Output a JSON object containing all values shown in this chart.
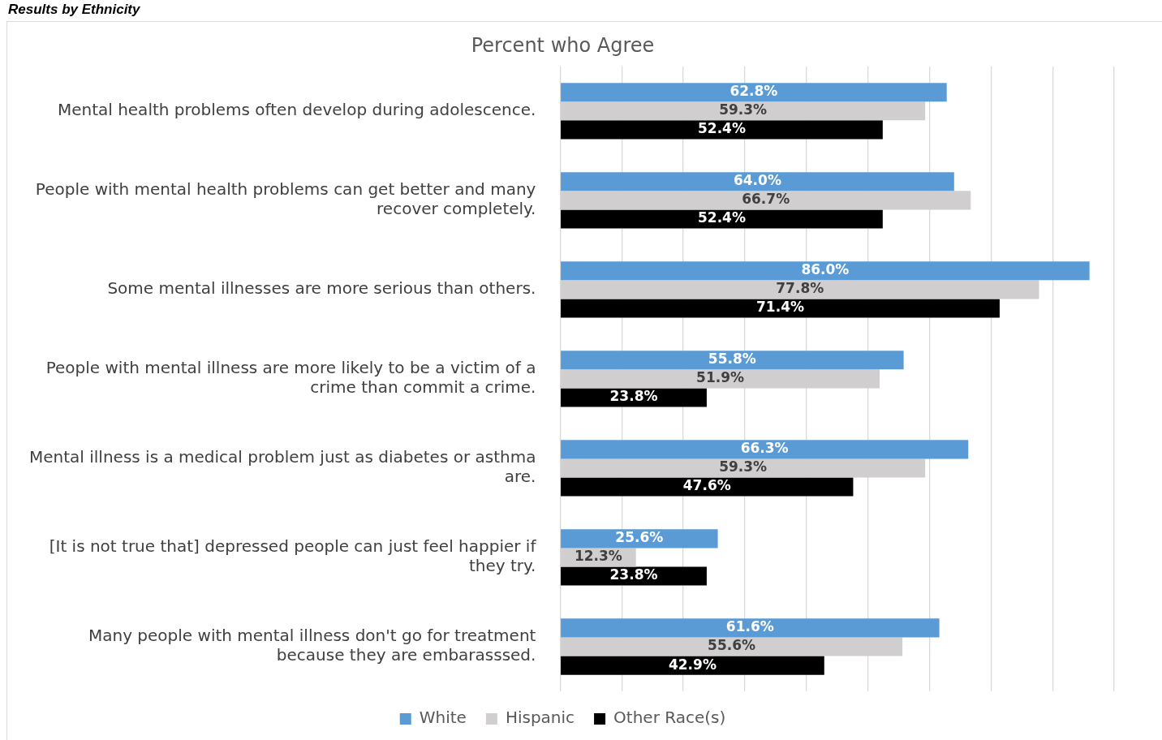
{
  "chart_data": {
    "type": "bar",
    "orientation": "horizontal",
    "title": "Results by Ethnicity",
    "subtitle": "Percent who Agree",
    "categories": [
      "Mental health problems often develop during adolescence.",
      "People with mental health problems can get better and many recover completely.",
      "Some mental illnesses are more serious than others.",
      "People with mental illness are more likely to be a victim of a crime than commit a crime.",
      "Mental illness is a medical problem just as diabetes or asthma are.",
      "[It is not true that] depressed people can just feel happier if they try.",
      "Many people with mental illness don't go for treatment because they are embarasssed."
    ],
    "series": [
      {
        "name": "White",
        "color": "#5b9bd5",
        "values": [
          62.8,
          64.0,
          86.0,
          55.8,
          66.3,
          25.6,
          61.6
        ],
        "value_labels": [
          "62.8%",
          "64.0%",
          "86.0%",
          "55.8%",
          "66.3%",
          "25.6%",
          "61.6%"
        ]
      },
      {
        "name": "Hispanic",
        "color": "#d0cece",
        "values": [
          59.3,
          66.7,
          77.8,
          51.9,
          59.3,
          12.3,
          55.6
        ],
        "value_labels": [
          "59.3%",
          "66.7%",
          "77.8%",
          "51.9%",
          "59.3%",
          "12.3%",
          "55.6%"
        ]
      },
      {
        "name": "Other Race(s)",
        "color": "#000000",
        "values": [
          52.4,
          52.4,
          71.4,
          23.8,
          47.6,
          23.8,
          42.9
        ],
        "value_labels": [
          "52.4%",
          "52.4%",
          "71.4%",
          "23.8%",
          "47.6%",
          "23.8%",
          "42.9%"
        ]
      }
    ],
    "xlim": [
      0,
      90
    ],
    "xticks": [
      {
        "value": 0,
        "label": null
      },
      {
        "value": 10,
        "label": null
      },
      {
        "value": 20,
        "label": null
      },
      {
        "value": 30,
        "label": null
      },
      {
        "value": 40,
        "label": null
      },
      {
        "value": 50,
        "label": null
      },
      {
        "value": 60,
        "label": null
      },
      {
        "value": 70,
        "label": null
      },
      {
        "value": 80,
        "label": null
      },
      {
        "value": 90,
        "label": null
      }
    ],
    "tick_labels": "y",
    "grid": "x",
    "legend": "bottom"
  }
}
